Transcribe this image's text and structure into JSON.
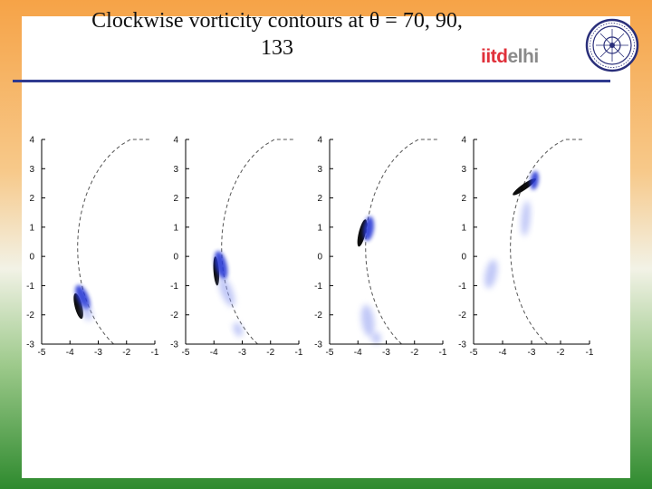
{
  "slide": {
    "title_line1": "Clockwise vorticity contours at θ = 70, 90,",
    "title_line2": "133",
    "logo_text": {
      "part1": "iitd",
      "part2": "elhi"
    }
  },
  "colors": {
    "rule": "#2f3a8f",
    "dashed": "#555555",
    "vortex_core": "#000000",
    "vortex": "#2a3bd6",
    "diffuse": "#8e9bf0"
  },
  "chart_data": [
    {
      "type": "contour",
      "xlim": [
        -5,
        -1
      ],
      "ylim": [
        -3,
        4
      ],
      "xticks": [
        -5,
        -4,
        -3,
        -2,
        -1
      ],
      "yticks": [
        -3,
        -2,
        -1,
        0,
        1,
        2,
        3,
        4
      ],
      "vortex_center": [
        -3.7,
        -1.6
      ],
      "blobs": [
        {
          "x": -3.7,
          "y": -1.7,
          "rx": 0.13,
          "ry": 0.45,
          "rot": -14,
          "kind": "core"
        },
        {
          "x": -3.55,
          "y": -1.4,
          "rx": 0.2,
          "ry": 0.45,
          "rot": -24,
          "kind": "vortex"
        },
        {
          "x": -3.4,
          "y": -1.9,
          "rx": 0.16,
          "ry": 0.3,
          "rot": -20,
          "kind": "diffuse"
        }
      ]
    },
    {
      "type": "contour",
      "xlim": [
        -5,
        -1
      ],
      "ylim": [
        -3,
        4
      ],
      "xticks": [
        -5,
        -4,
        -3,
        -2,
        -1
      ],
      "yticks": [
        -3,
        -2,
        -1,
        0,
        1,
        2,
        3,
        4
      ],
      "vortex_center": [
        -3.9,
        -0.4
      ],
      "blobs": [
        {
          "x": -3.92,
          "y": -0.5,
          "rx": 0.1,
          "ry": 0.5,
          "rot": -4,
          "kind": "core"
        },
        {
          "x": -3.75,
          "y": -0.3,
          "rx": 0.2,
          "ry": 0.5,
          "rot": -14,
          "kind": "vortex"
        },
        {
          "x": -3.55,
          "y": -1.2,
          "rx": 0.2,
          "ry": 0.55,
          "rot": -22,
          "kind": "diffuse"
        },
        {
          "x": -3.15,
          "y": -2.5,
          "rx": 0.15,
          "ry": 0.25,
          "rot": -20,
          "kind": "diffuse"
        }
      ]
    },
    {
      "type": "contour",
      "xlim": [
        -5,
        -1
      ],
      "ylim": [
        -3,
        4
      ],
      "xticks": [
        -5,
        -4,
        -3,
        -2,
        -1
      ],
      "yticks": [
        -3,
        -2,
        -1,
        0,
        1,
        2,
        3,
        4
      ],
      "vortex_center": [
        -3.75,
        0.9
      ],
      "blobs": [
        {
          "x": -3.85,
          "y": 0.8,
          "rx": 0.12,
          "ry": 0.48,
          "rot": 14,
          "kind": "core"
        },
        {
          "x": -3.62,
          "y": 0.95,
          "rx": 0.18,
          "ry": 0.42,
          "rot": 8,
          "kind": "vortex"
        },
        {
          "x": -3.65,
          "y": -2.2,
          "rx": 0.22,
          "ry": 0.55,
          "rot": -8,
          "kind": "diffuse"
        },
        {
          "x": -3.35,
          "y": -2.8,
          "rx": 0.16,
          "ry": 0.2,
          "rot": 0,
          "kind": "diffuse"
        }
      ]
    },
    {
      "type": "contour",
      "xlim": [
        -5,
        -1
      ],
      "ylim": [
        -3,
        4
      ],
      "xticks": [
        -5,
        -4,
        -3,
        -2,
        -1
      ],
      "yticks": [
        -3,
        -2,
        -1,
        0,
        1,
        2,
        3,
        4
      ],
      "vortex_center": [
        -3.05,
        2.45
      ],
      "blobs": [
        {
          "x": -3.25,
          "y": 2.38,
          "rx": 0.1,
          "ry": 0.48,
          "rot": 55,
          "kind": "core"
        },
        {
          "x": -2.9,
          "y": 2.6,
          "rx": 0.14,
          "ry": 0.32,
          "rot": 8,
          "kind": "vortex"
        },
        {
          "x": -4.4,
          "y": -0.6,
          "rx": 0.2,
          "ry": 0.5,
          "rot": 12,
          "kind": "diffuse"
        },
        {
          "x": -3.2,
          "y": 1.3,
          "rx": 0.15,
          "ry": 0.6,
          "rot": 5,
          "kind": "diffuse"
        }
      ]
    }
  ]
}
